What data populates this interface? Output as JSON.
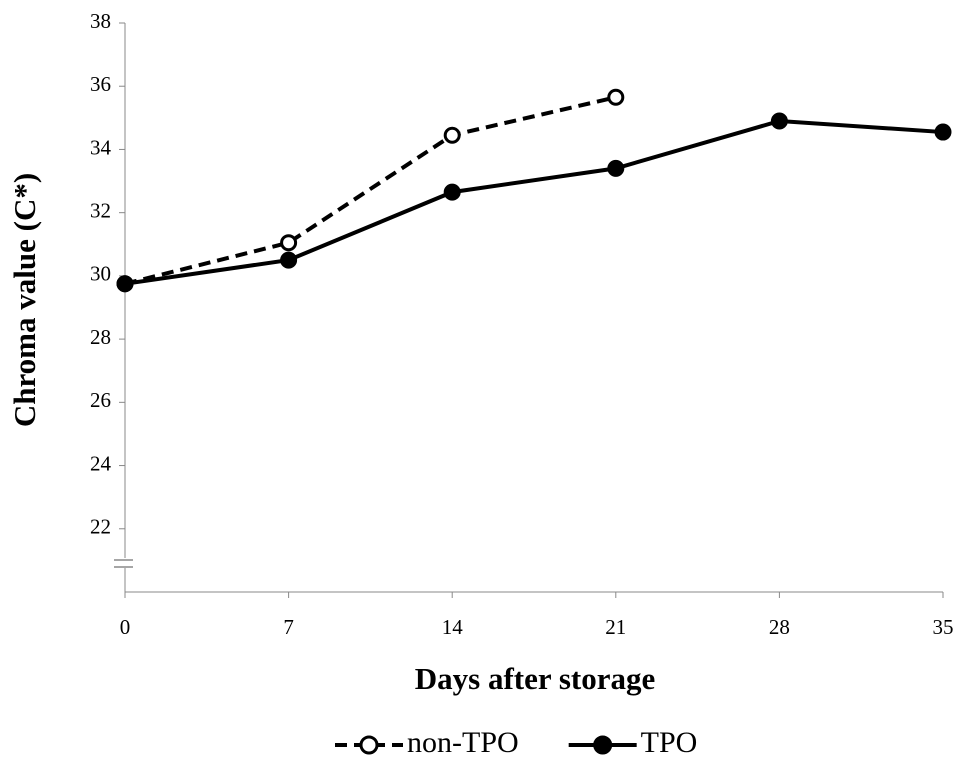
{
  "chart_data": {
    "type": "line",
    "x_label": "Days after storage",
    "y_label": "Chroma value (C*)",
    "x": [
      0,
      7,
      14,
      21,
      28,
      35
    ],
    "xlim": [
      0,
      35
    ],
    "xticks": [
      0,
      7,
      14,
      21,
      28,
      35
    ],
    "ylim": [
      20,
      38
    ],
    "yticks": [
      22,
      24,
      26,
      28,
      30,
      32,
      34,
      36,
      38
    ],
    "legend": "bottom",
    "series": [
      {
        "name": "non-TPO",
        "color": "#000000",
        "line_style": "dashed",
        "marker": "open",
        "values": [
          29.75,
          31.05,
          34.45,
          35.65,
          null,
          null
        ]
      },
      {
        "name": "TPO",
        "color": "#000000",
        "line_style": "solid",
        "marker": "filled",
        "values": [
          29.75,
          30.5,
          32.65,
          33.4,
          34.9,
          34.55
        ]
      }
    ]
  }
}
